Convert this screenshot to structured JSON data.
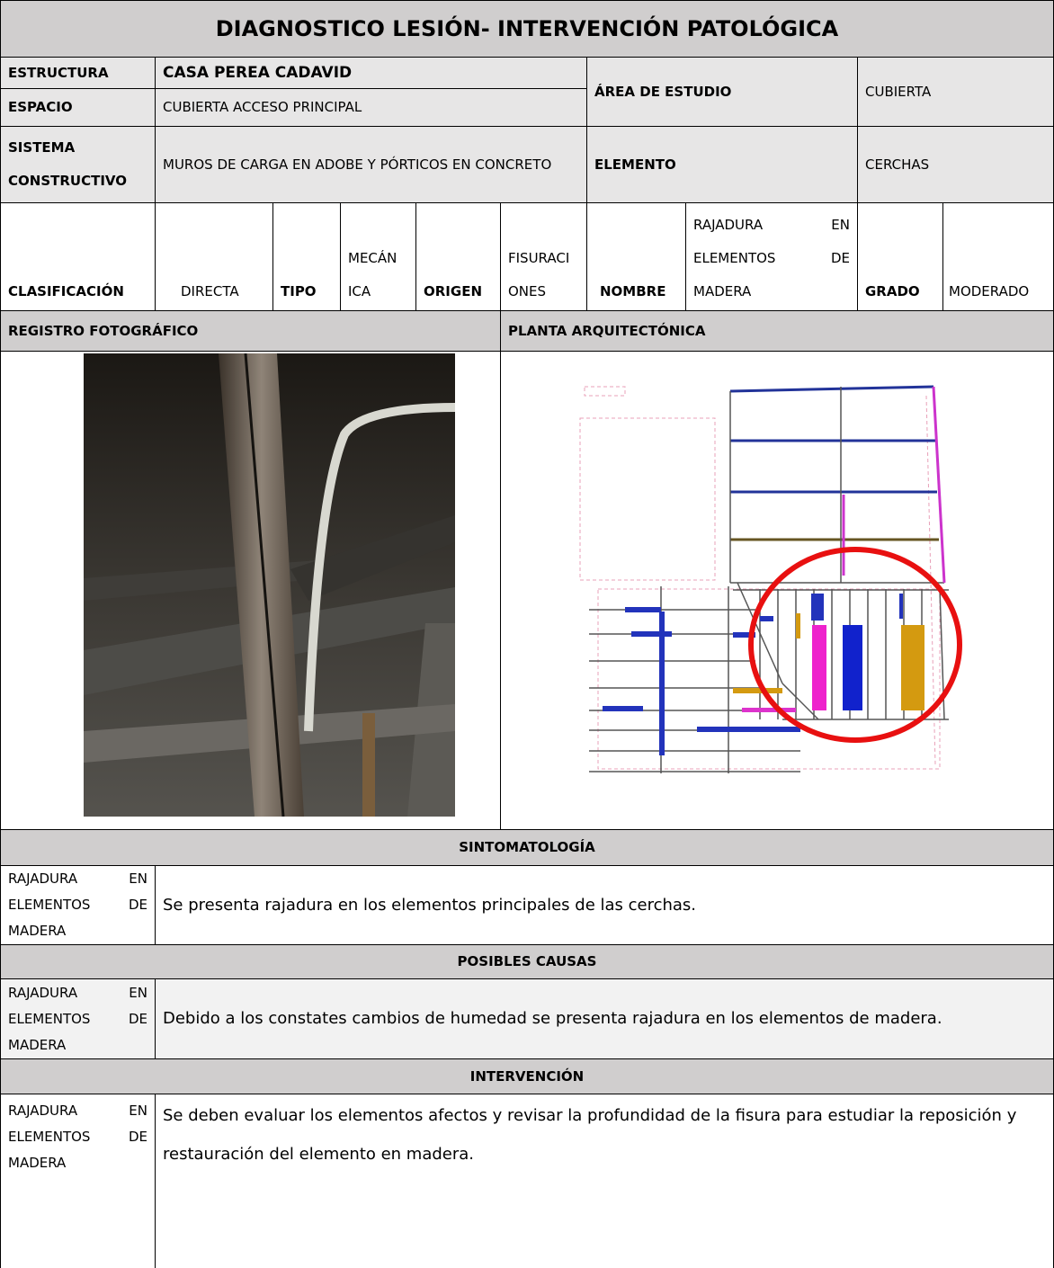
{
  "title": "DIAGNOSTICO LESIÓN- INTERVENCIÓN PATOLÓGICA",
  "estructura": {
    "label": "ESTRUCTURA",
    "value": "CASA PEREA CADAVID"
  },
  "espacio": {
    "label": "ESPACIO",
    "value": "CUBIERTA ACCESO PRINCIPAL"
  },
  "area_estudio": {
    "label": "ÁREA DE ESTUDIO",
    "value": "CUBIERTA"
  },
  "sistema": {
    "label": "SISTEMA CONSTRUCTIVO",
    "value": "MUROS DE CARGA EN ADOBE Y PÓRTICOS EN CONCRETO"
  },
  "elemento": {
    "label": "ELEMENTO",
    "value": "CERCHAS"
  },
  "clasificacion": {
    "label": "CLASIFICACIÓN",
    "value": "DIRECTA"
  },
  "tipo": {
    "label": "TIPO",
    "value": "MECÁNICA"
  },
  "origen": {
    "label": "ORIGEN",
    "value": "FISURACIONES"
  },
  "nombre": {
    "label": "NOMBRE",
    "value": "RAJADURA EN ELEMENTOS DE MADERA"
  },
  "grado": {
    "label": "GRADO",
    "value": "MODERADO"
  },
  "registro": "REGISTRO FOTOGRÁFICO",
  "planta": "PLANTA ARQUITECTÓNICA",
  "sintomatologia": {
    "heading": "SINTOMATOLOGÍA",
    "label": "RAJADURA EN ELEMENTOS DE MADERA",
    "text": "Se presenta rajadura en los elementos principales de las cerchas."
  },
  "causas": {
    "heading": "POSIBLES CAUSAS",
    "label": "RAJADURA EN ELEMENTOS DE MADERA",
    "text": "Debido a los constates cambios de humedad se presenta rajadura en los elementos de madera."
  },
  "intervencion": {
    "heading": "INTERVENCIÓN",
    "label": "RAJADURA EN ELEMENTOS DE MADERA",
    "text": "Se deben evaluar los elementos afectos y revisar la profundidad de la fisura para estudiar la reposición y restauración del elemento en madera."
  }
}
